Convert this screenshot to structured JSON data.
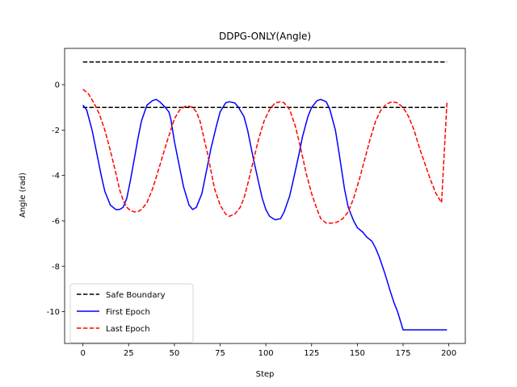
{
  "chart_data": {
    "type": "line",
    "title": "DDPG-ONLY(Angle)",
    "xlabel": "Step",
    "ylabel": "Angle (rad)",
    "xlim": [
      -10,
      209
    ],
    "ylim": [
      -11.4,
      1.6
    ],
    "xticks": [
      0,
      25,
      50,
      75,
      100,
      125,
      150,
      175,
      200
    ],
    "yticks": [
      0,
      -2,
      -4,
      -6,
      -8,
      -10
    ],
    "grid": false,
    "legend_position": "lower-left",
    "boundaries": {
      "name": "Safe Boundary",
      "color": "#000000",
      "style": "dashed",
      "x": [
        0,
        199
      ],
      "levels": [
        1,
        -1
      ]
    },
    "series": [
      {
        "name": "First Epoch",
        "color": "#0000ff",
        "style": "solid",
        "x": [
          0,
          2,
          5,
          8,
          10,
          12,
          15,
          18,
          20,
          22,
          24,
          26,
          28,
          30,
          32,
          35,
          38,
          40,
          42,
          45,
          47,
          48,
          50,
          52,
          55,
          58,
          60,
          62,
          65,
          68,
          70,
          73,
          75,
          78,
          80,
          83,
          85,
          88,
          90,
          93,
          96,
          98,
          100,
          102,
          105,
          108,
          110,
          113,
          115,
          118,
          120,
          123,
          125,
          128,
          130,
          133,
          135,
          138,
          140,
          143,
          145,
          148,
          150,
          153,
          155,
          158,
          160,
          162,
          165,
          168,
          170,
          172,
          175,
          178,
          180,
          183,
          186,
          188,
          190,
          193,
          196,
          199
        ],
        "values": [
          -0.9,
          -1.1,
          -2.0,
          -3.2,
          -4.0,
          -4.7,
          -5.3,
          -5.5,
          -5.5,
          -5.4,
          -5.0,
          -4.2,
          -3.3,
          -2.4,
          -1.6,
          -0.9,
          -0.7,
          -0.65,
          -0.75,
          -1.0,
          -1.2,
          -1.5,
          -2.5,
          -3.3,
          -4.5,
          -5.3,
          -5.5,
          -5.4,
          -4.8,
          -3.6,
          -2.8,
          -1.8,
          -1.2,
          -0.8,
          -0.75,
          -0.8,
          -1.0,
          -1.4,
          -2.0,
          -3.2,
          -4.3,
          -5.0,
          -5.5,
          -5.8,
          -5.95,
          -5.9,
          -5.6,
          -4.9,
          -4.2,
          -3.1,
          -2.3,
          -1.4,
          -1.0,
          -0.7,
          -0.65,
          -0.75,
          -1.1,
          -2.0,
          -3.0,
          -4.6,
          -5.4,
          -6.0,
          -6.3,
          -6.5,
          -6.7,
          -6.9,
          -7.2,
          -7.6,
          -8.3,
          -9.1,
          -9.6,
          -10.0,
          -10.8,
          -10.8,
          -10.8,
          -10.8,
          -10.8,
          -10.8,
          -10.8,
          -10.8,
          -10.8,
          -10.8
        ]
      },
      {
        "name": "Last Epoch",
        "color": "#ff0000",
        "style": "dashed",
        "x": [
          0,
          3,
          6,
          9,
          12,
          15,
          18,
          20,
          22,
          24,
          26,
          28,
          30,
          32,
          35,
          38,
          40,
          43,
          46,
          48,
          50,
          53,
          56,
          58,
          60,
          62,
          64,
          66,
          68,
          70,
          72,
          75,
          78,
          80,
          83,
          86,
          88,
          90,
          93,
          96,
          99,
          102,
          105,
          108,
          110,
          113,
          116,
          119,
          122,
          125,
          128,
          130,
          133,
          136,
          139,
          142,
          145,
          148,
          151,
          154,
          157,
          160,
          163,
          166,
          169,
          172,
          175,
          178,
          181,
          184,
          187,
          190,
          193,
          196,
          199
        ],
        "values": [
          -0.2,
          -0.4,
          -0.8,
          -1.3,
          -2.0,
          -2.9,
          -3.9,
          -4.6,
          -5.1,
          -5.4,
          -5.55,
          -5.6,
          -5.6,
          -5.5,
          -5.2,
          -4.6,
          -4.1,
          -3.3,
          -2.5,
          -2.0,
          -1.5,
          -1.1,
          -0.95,
          -0.95,
          -1.0,
          -1.2,
          -1.6,
          -2.3,
          -3.0,
          -3.8,
          -4.6,
          -5.3,
          -5.7,
          -5.8,
          -5.7,
          -5.4,
          -5.0,
          -4.4,
          -3.4,
          -2.4,
          -1.6,
          -1.1,
          -0.8,
          -0.75,
          -0.8,
          -1.1,
          -1.8,
          -2.8,
          -3.9,
          -4.8,
          -5.5,
          -5.9,
          -6.1,
          -6.1,
          -6.05,
          -5.9,
          -5.6,
          -5.0,
          -4.2,
          -3.3,
          -2.4,
          -1.6,
          -1.1,
          -0.85,
          -0.75,
          -0.8,
          -1.0,
          -1.4,
          -2.0,
          -2.8,
          -3.5,
          -4.2,
          -4.8,
          -5.2,
          -0.7
        ]
      }
    ]
  }
}
